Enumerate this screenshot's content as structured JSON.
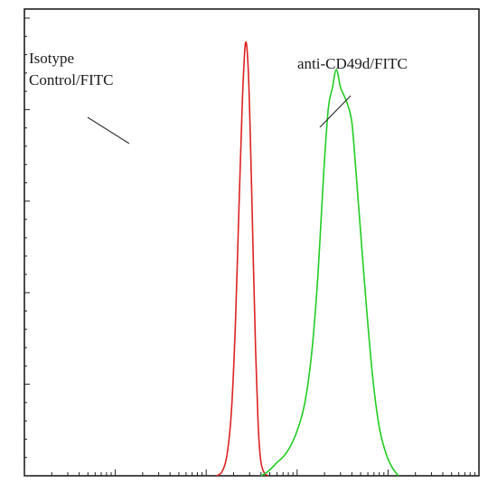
{
  "chart_data": {
    "type": "line",
    "title": "",
    "xlabel": "",
    "ylabel": "",
    "x_scale": "log",
    "xlim": [
      1,
      100000
    ],
    "ylim": [
      0,
      100
    ],
    "grid": false,
    "legend": "none",
    "annotations": [
      {
        "lines": [
          "Isotype",
          "Control/FITC"
        ],
        "series": "Isotype Control/FITC"
      },
      {
        "lines": [
          "anti-CD49d/FITC"
        ],
        "series": "anti-CD49d/FITC"
      }
    ],
    "series": [
      {
        "name": "Isotype Control/FITC",
        "color": "#dd2222",
        "x": [
          130,
          150,
          170,
          190,
          210,
          230,
          250,
          270,
          290,
          310,
          330,
          350,
          370,
          390,
          410,
          440,
          480
        ],
        "y": [
          0,
          1,
          5,
          15,
          35,
          62,
          85,
          98,
          92,
          72,
          48,
          28,
          13,
          5,
          2,
          0.5,
          0
        ]
      },
      {
        "name": "anti-CD49d/FITC",
        "color": "#22cc22",
        "x": [
          400,
          480,
          600,
          750,
          950,
          1200,
          1450,
          1700,
          1950,
          2200,
          2450,
          2700,
          3000,
          3300,
          3600,
          4000,
          4400,
          5000,
          5800,
          6800,
          8000,
          9500,
          11000,
          13000
        ],
        "y": [
          0,
          1,
          3,
          5,
          9,
          16,
          28,
          46,
          68,
          83,
          88,
          92,
          88,
          86,
          84,
          80,
          70,
          55,
          38,
          22,
          11,
          5,
          2,
          0
        ]
      }
    ]
  }
}
